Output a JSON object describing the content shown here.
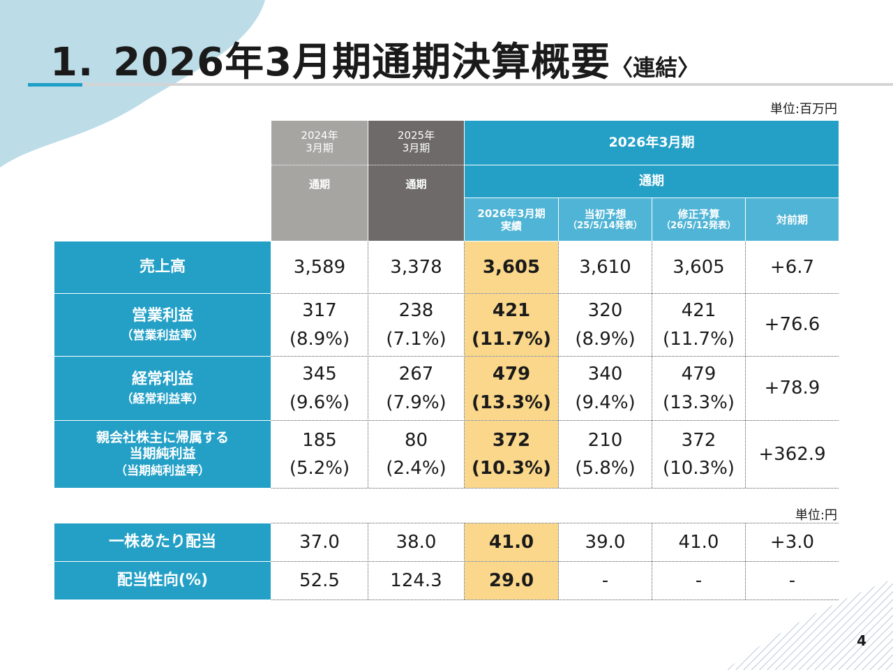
{
  "page": {
    "title_number": "1.",
    "title_main": "2026年3月期通期決算概要",
    "title_sub": "〈連結〉",
    "unit_top": "単位:百万円",
    "unit_bottom": "単位:円",
    "page_number": "4"
  },
  "colors": {
    "accent_blue": "#24a0c7",
    "light_blue": "#4fb4d5",
    "highlight": "#fad78a",
    "gray_2024": "#a7a5a2",
    "gray_2025": "#6d6a69"
  },
  "headers": {
    "fy2024_line1": "2024年",
    "fy2024_line2": "3月期",
    "fy2025_line1": "2025年",
    "fy2025_line2": "3月期",
    "full_year": "通期",
    "fy2026": "2026年3月期",
    "fy2026_full_year": "通期",
    "actual_line1": "2026年3月期",
    "actual_line2": "実績",
    "initial_line1": "当初予想",
    "initial_line2": "（25/5/14発表）",
    "revised_line1": "修正予算",
    "revised_line2": "（26/5/12発表）",
    "yoy": "対前期"
  },
  "rows": [
    {
      "label": "売上高",
      "sub": "",
      "values": [
        "3,589",
        "3,378",
        "3,605",
        "3,610",
        "3,605"
      ],
      "ratios": [
        "",
        "",
        "",
        "",
        ""
      ],
      "yoy": "+6.7"
    },
    {
      "label": "営業利益",
      "sub": "（営業利益率）",
      "values": [
        "317",
        "238",
        "421",
        "320",
        "421"
      ],
      "ratios": [
        "(8.9%)",
        "(7.1%)",
        "(11.7%)",
        "(8.9%)",
        "(11.7%)"
      ],
      "yoy": "+76.6"
    },
    {
      "label": "経常利益",
      "sub": "（経常利益率）",
      "values": [
        "345",
        "267",
        "479",
        "340",
        "479"
      ],
      "ratios": [
        "(9.6%)",
        "(7.9%)",
        "(13.3%)",
        "(9.4%)",
        "(13.3%)"
      ],
      "yoy": "+78.9"
    },
    {
      "label_line1": "親会社株主に帰属する",
      "label_line2": "当期純利益",
      "sub": "（当期純利益率）",
      "values": [
        "185",
        "80",
        "372",
        "210",
        "372"
      ],
      "ratios": [
        "(5.2%)",
        "(2.4%)",
        "(10.3%)",
        "(5.8%)",
        "(10.3%)"
      ],
      "yoy": "+362.9"
    }
  ],
  "dividend_rows": [
    {
      "label": "一株あたり配当",
      "values": [
        "37.0",
        "38.0",
        "41.0",
        "39.0",
        "41.0"
      ],
      "yoy": "+3.0"
    },
    {
      "label": "配当性向(%)",
      "values": [
        "52.5",
        "124.3",
        "29.0",
        "-",
        "-"
      ],
      "yoy": "-"
    }
  ]
}
